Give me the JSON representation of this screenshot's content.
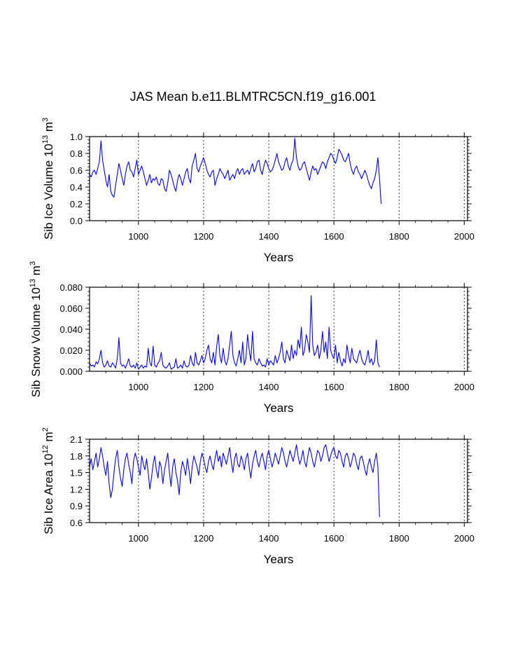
{
  "title": "JAS Mean b.e11.BLMTRC5CN.f19_g16.001",
  "colors": {
    "series": "#0000ff",
    "axis": "#000000",
    "grid": "#000000"
  },
  "chart_data": [
    {
      "type": "line",
      "name": "ice-volume",
      "xlabel": "Years",
      "ylabel": {
        "main": "Sib Ice Volume 10",
        "exp": "13",
        "unit": " m",
        "unit_exp": "3"
      },
      "xlim": [
        850,
        2010
      ],
      "ylim": [
        0.0,
        1.0
      ],
      "xticks": [
        1000,
        1200,
        1400,
        1600,
        1800,
        2000
      ],
      "xtick_labels": [
        "1000",
        "1200",
        "1400",
        "1600",
        "1800",
        "2000"
      ],
      "yticks": [
        0.0,
        0.2,
        0.4,
        0.6,
        0.8,
        1.0
      ],
      "ytick_labels": [
        "0.0",
        "0.2",
        "0.4",
        "0.6",
        "0.8",
        "1.0"
      ],
      "grid": "dotted vertical at x ticks",
      "series": [
        {
          "name": "Sib Ice Volume",
          "x_start": 850,
          "x_step": 5,
          "values": [
            0.55,
            0.52,
            0.58,
            0.6,
            0.55,
            0.62,
            0.7,
            0.95,
            0.72,
            0.6,
            0.48,
            0.4,
            0.55,
            0.35,
            0.3,
            0.28,
            0.42,
            0.55,
            0.68,
            0.6,
            0.5,
            0.42,
            0.55,
            0.65,
            0.7,
            0.6,
            0.58,
            0.52,
            0.62,
            0.72,
            0.55,
            0.6,
            0.65,
            0.58,
            0.5,
            0.42,
            0.48,
            0.55,
            0.45,
            0.5,
            0.48,
            0.52,
            0.44,
            0.42,
            0.5,
            0.48,
            0.38,
            0.35,
            0.45,
            0.6,
            0.55,
            0.48,
            0.4,
            0.35,
            0.48,
            0.55,
            0.5,
            0.42,
            0.5,
            0.58,
            0.62,
            0.5,
            0.45,
            0.65,
            0.72,
            0.8,
            0.62,
            0.58,
            0.65,
            0.7,
            0.75,
            0.68,
            0.6,
            0.55,
            0.52,
            0.58,
            0.6,
            0.42,
            0.5,
            0.55,
            0.62,
            0.58,
            0.55,
            0.5,
            0.55,
            0.6,
            0.48,
            0.52,
            0.55,
            0.5,
            0.58,
            0.62,
            0.55,
            0.6,
            0.62,
            0.55,
            0.58,
            0.6,
            0.55,
            0.62,
            0.68,
            0.58,
            0.62,
            0.7,
            0.72,
            0.6,
            0.55,
            0.65,
            0.72,
            0.68,
            0.62,
            0.58,
            0.6,
            0.65,
            0.72,
            0.8,
            0.7,
            0.65,
            0.6,
            0.62,
            0.7,
            0.75,
            0.65,
            0.6,
            0.68,
            0.72,
            0.98,
            0.75,
            0.65,
            0.6,
            0.62,
            0.68,
            0.7,
            0.62,
            0.55,
            0.48,
            0.58,
            0.65,
            0.6,
            0.62,
            0.55,
            0.6,
            0.65,
            0.7,
            0.68,
            0.62,
            0.7,
            0.75,
            0.8,
            0.78,
            0.72,
            0.68,
            0.75,
            0.85,
            0.82,
            0.78,
            0.72,
            0.7,
            0.75,
            0.8,
            0.68,
            0.6,
            0.55,
            0.62,
            0.65,
            0.58,
            0.55,
            0.5,
            0.55,
            0.6,
            0.55,
            0.48,
            0.42,
            0.38,
            0.45,
            0.5,
            0.6,
            0.75,
            0.5,
            0.2
          ]
        }
      ]
    },
    {
      "type": "line",
      "name": "snow-volume",
      "xlabel": "Years",
      "ylabel": {
        "main": "Sib Snow Volume 10",
        "exp": "13",
        "unit": " m",
        "unit_exp": "3"
      },
      "xlim": [
        850,
        2010
      ],
      "ylim": [
        0.0,
        0.08
      ],
      "xticks": [
        1000,
        1200,
        1400,
        1600,
        1800,
        2000
      ],
      "xtick_labels": [
        "1000",
        "1200",
        "1400",
        "1600",
        "1800",
        "2000"
      ],
      "yticks": [
        0.0,
        0.02,
        0.04,
        0.06,
        0.08
      ],
      "ytick_labels": [
        "0.000",
        "0.020",
        "0.040",
        "0.060",
        "0.080"
      ],
      "grid": "dotted vertical at x ticks",
      "series": [
        {
          "name": "Sib Snow Volume",
          "x_start": 850,
          "x_step": 5,
          "values": [
            0.008,
            0.005,
            0.006,
            0.004,
            0.009,
            0.007,
            0.012,
            0.02,
            0.008,
            0.004,
            0.006,
            0.01,
            0.005,
            0.004,
            0.008,
            0.006,
            0.003,
            0.012,
            0.032,
            0.008,
            0.005,
            0.006,
            0.003,
            0.007,
            0.012,
            0.005,
            0.004,
            0.006,
            0.003,
            0.008,
            0.002,
            0.004,
            0.006,
            0.003,
            0.005,
            0.004,
            0.022,
            0.008,
            0.005,
            0.024,
            0.006,
            0.004,
            0.008,
            0.01,
            0.018,
            0.006,
            0.004,
            0.003,
            0.005,
            0.008,
            0.002,
            0.003,
            0.004,
            0.012,
            0.003,
            0.004,
            0.006,
            0.003,
            0.01,
            0.005,
            0.004,
            0.006,
            0.015,
            0.008,
            0.005,
            0.018,
            0.008,
            0.006,
            0.01,
            0.015,
            0.008,
            0.012,
            0.02,
            0.025,
            0.012,
            0.008,
            0.018,
            0.006,
            0.024,
            0.035,
            0.015,
            0.008,
            0.022,
            0.01,
            0.006,
            0.012,
            0.025,
            0.038,
            0.015,
            0.008,
            0.005,
            0.012,
            0.02,
            0.008,
            0.028,
            0.006,
            0.012,
            0.035,
            0.02,
            0.01,
            0.038,
            0.012,
            0.008,
            0.006,
            0.012,
            0.008,
            0.005,
            0.006,
            0.004,
            0.012,
            0.006,
            0.01,
            0.008,
            0.006,
            0.015,
            0.008,
            0.012,
            0.018,
            0.028,
            0.012,
            0.008,
            0.02,
            0.015,
            0.01,
            0.025,
            0.012,
            0.02,
            0.015,
            0.03,
            0.022,
            0.042,
            0.015,
            0.02,
            0.035,
            0.028,
            0.018,
            0.072,
            0.025,
            0.015,
            0.018,
            0.025,
            0.012,
            0.02,
            0.038,
            0.018,
            0.028,
            0.012,
            0.042,
            0.02,
            0.015,
            0.012,
            0.025,
            0.008,
            0.018,
            0.01,
            0.005,
            0.012,
            0.008,
            0.025,
            0.015,
            0.008,
            0.022,
            0.012,
            0.01,
            0.008,
            0.015,
            0.02,
            0.012,
            0.008,
            0.006,
            0.012,
            0.02,
            0.008,
            0.012,
            0.006,
            0.01,
            0.03,
            0.008,
            0.004
          ]
        }
      ]
    },
    {
      "type": "line",
      "name": "ice-area",
      "xlabel": "Years",
      "ylabel": {
        "main": "Sib Ice Area 10",
        "exp": "12",
        "unit": " m",
        "unit_exp": "2"
      },
      "xlim": [
        850,
        2010
      ],
      "ylim": [
        0.6,
        2.1
      ],
      "xticks": [
        1000,
        1200,
        1400,
        1600,
        1800,
        2000
      ],
      "xtick_labels": [
        "1000",
        "1200",
        "1400",
        "1600",
        "1800",
        "2000"
      ],
      "yticks": [
        0.6,
        0.9,
        1.2,
        1.5,
        1.8,
        2.1
      ],
      "ytick_labels": [
        "0.6",
        "0.9",
        "1.2",
        "1.5",
        "1.8",
        "2.1"
      ],
      "grid": "dotted vertical at x ticks",
      "series": [
        {
          "name": "Sib Ice Area",
          "x_start": 850,
          "x_step": 5,
          "values": [
            1.6,
            1.75,
            1.55,
            1.7,
            1.85,
            1.6,
            1.75,
            1.95,
            1.8,
            1.6,
            1.45,
            1.7,
            1.3,
            1.05,
            1.2,
            1.5,
            1.75,
            1.9,
            1.6,
            1.4,
            1.25,
            1.55,
            1.75,
            1.85,
            1.65,
            1.5,
            1.3,
            1.7,
            1.85,
            1.75,
            1.6,
            1.45,
            1.8,
            1.65,
            1.55,
            1.75,
            1.5,
            1.2,
            1.4,
            1.65,
            1.8,
            1.55,
            1.4,
            1.7,
            1.6,
            1.3,
            1.55,
            1.7,
            1.85,
            1.5,
            1.25,
            1.6,
            1.75,
            1.5,
            1.35,
            1.1,
            1.5,
            1.7,
            1.6,
            1.45,
            1.75,
            1.55,
            1.3,
            1.6,
            1.8,
            1.7,
            1.6,
            1.45,
            1.7,
            1.85,
            1.75,
            1.6,
            1.5,
            1.7,
            1.8,
            1.65,
            1.55,
            1.75,
            1.9,
            1.7,
            1.8,
            1.6,
            1.85,
            1.75,
            1.65,
            1.8,
            1.95,
            1.7,
            1.5,
            1.75,
            1.85,
            1.65,
            1.6,
            1.8,
            1.7,
            1.55,
            1.75,
            1.85,
            1.6,
            1.4,
            1.65,
            1.8,
            1.9,
            1.7,
            1.6,
            1.75,
            1.85,
            1.7,
            1.55,
            1.8,
            1.9,
            1.75,
            1.6,
            1.7,
            1.85,
            1.75,
            1.65,
            1.8,
            1.95,
            1.85,
            1.7,
            1.6,
            1.75,
            1.9,
            1.8,
            1.7,
            1.85,
            2.0,
            1.8,
            1.65,
            1.75,
            1.9,
            1.7,
            1.6,
            1.8,
            1.95,
            1.85,
            1.7,
            1.6,
            1.75,
            1.9,
            1.85,
            1.7,
            1.8,
            1.95,
            2.0,
            1.85,
            1.7,
            1.8,
            1.9,
            1.95,
            1.8,
            1.75,
            1.9,
            1.85,
            1.7,
            1.6,
            1.8,
            1.85,
            1.75,
            1.6,
            1.7,
            1.85,
            1.8,
            1.65,
            1.55,
            1.75,
            1.8,
            1.7,
            1.55,
            1.45,
            1.65,
            1.75,
            1.6,
            1.5,
            1.7,
            1.85,
            1.6,
            0.7
          ]
        }
      ]
    }
  ]
}
